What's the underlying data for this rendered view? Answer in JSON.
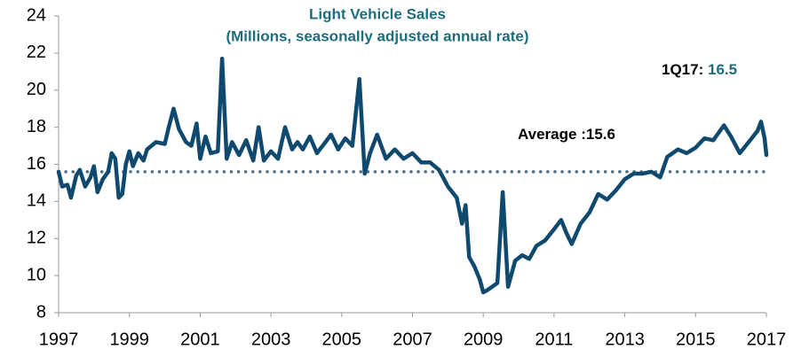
{
  "chart_data": {
    "type": "line",
    "title": "Light Vehicle Sales",
    "subtitle": "(Millions, seasonally adjusted annual rate)",
    "x": [
      1997.0,
      1997.1,
      1997.25,
      1997.35,
      1997.5,
      1997.6,
      1997.75,
      1997.9,
      1998.0,
      1998.1,
      1998.25,
      1998.4,
      1998.5,
      1998.6,
      1998.7,
      1998.8,
      1998.9,
      1999.0,
      1999.1,
      1999.25,
      1999.4,
      1999.5,
      1999.75,
      2000.0,
      2000.1,
      2000.25,
      2000.4,
      2000.6,
      2000.75,
      2000.9,
      2001.0,
      2001.15,
      2001.3,
      2001.5,
      2001.62,
      2001.75,
      2001.9,
      2002.1,
      2002.3,
      2002.5,
      2002.65,
      2002.8,
      2003.0,
      2003.2,
      2003.4,
      2003.6,
      2003.75,
      2003.9,
      2004.1,
      2004.3,
      2004.5,
      2004.7,
      2004.9,
      2005.1,
      2005.3,
      2005.5,
      2005.65,
      2005.8,
      2006.0,
      2006.25,
      2006.5,
      2006.75,
      2007.0,
      2007.25,
      2007.5,
      2007.75,
      2008.0,
      2008.25,
      2008.4,
      2008.5,
      2008.6,
      2008.75,
      2008.9,
      2009.0,
      2009.1,
      2009.25,
      2009.4,
      2009.55,
      2009.7,
      2009.9,
      2010.1,
      2010.3,
      2010.5,
      2010.75,
      2011.0,
      2011.2,
      2011.35,
      2011.5,
      2011.75,
      2012.0,
      2012.25,
      2012.5,
      2012.75,
      2013.0,
      2013.25,
      2013.5,
      2013.75,
      2014.0,
      2014.2,
      2014.5,
      2014.75,
      2015.0,
      2015.25,
      2015.5,
      2015.8,
      2016.0,
      2016.25,
      2016.5,
      2016.75,
      2016.85,
      2016.95,
      2017.0
    ],
    "series": [
      {
        "name": "Light Vehicle Sales",
        "color": "#0f4a6e",
        "values": [
          15.6,
          14.8,
          14.9,
          14.2,
          15.4,
          15.7,
          14.8,
          15.3,
          15.9,
          14.5,
          15.2,
          15.6,
          16.6,
          16.3,
          14.2,
          14.4,
          16.0,
          16.7,
          15.9,
          16.6,
          16.2,
          16.8,
          17.2,
          17.1,
          17.9,
          19.0,
          17.9,
          17.2,
          17.0,
          18.2,
          16.3,
          17.5,
          16.6,
          16.7,
          21.7,
          16.3,
          17.2,
          16.5,
          17.3,
          16.2,
          18.0,
          16.2,
          16.7,
          16.3,
          18.0,
          16.8,
          17.2,
          16.8,
          17.5,
          16.6,
          17.1,
          17.6,
          16.8,
          17.4,
          17.0,
          20.6,
          15.5,
          16.6,
          17.6,
          16.3,
          16.8,
          16.3,
          16.6,
          16.1,
          16.1,
          15.7,
          14.8,
          14.2,
          12.8,
          13.8,
          11.0,
          10.5,
          9.8,
          9.1,
          9.2,
          9.4,
          9.6,
          14.5,
          9.4,
          10.8,
          11.1,
          10.9,
          11.6,
          11.9,
          12.5,
          13.0,
          12.3,
          11.7,
          12.8,
          13.4,
          14.4,
          14.1,
          14.6,
          15.2,
          15.5,
          15.5,
          15.6,
          15.3,
          16.4,
          16.8,
          16.6,
          16.9,
          17.4,
          17.3,
          18.1,
          17.5,
          16.6,
          17.2,
          17.8,
          18.3,
          17.4,
          16.5
        ]
      }
    ],
    "annotations": [
      {
        "text": "1Q17:",
        "value": 16.5
      },
      {
        "text": "Average :",
        "value": 15.6
      }
    ],
    "xlim": [
      1997,
      2017
    ],
    "xticks": [
      1997,
      1999,
      2001,
      2003,
      2005,
      2007,
      2009,
      2011,
      2013,
      2015,
      2017
    ],
    "ylim": [
      8,
      24
    ],
    "yticks": [
      8,
      10,
      12,
      14,
      16,
      18,
      20,
      22,
      24
    ],
    "grid": false
  }
}
